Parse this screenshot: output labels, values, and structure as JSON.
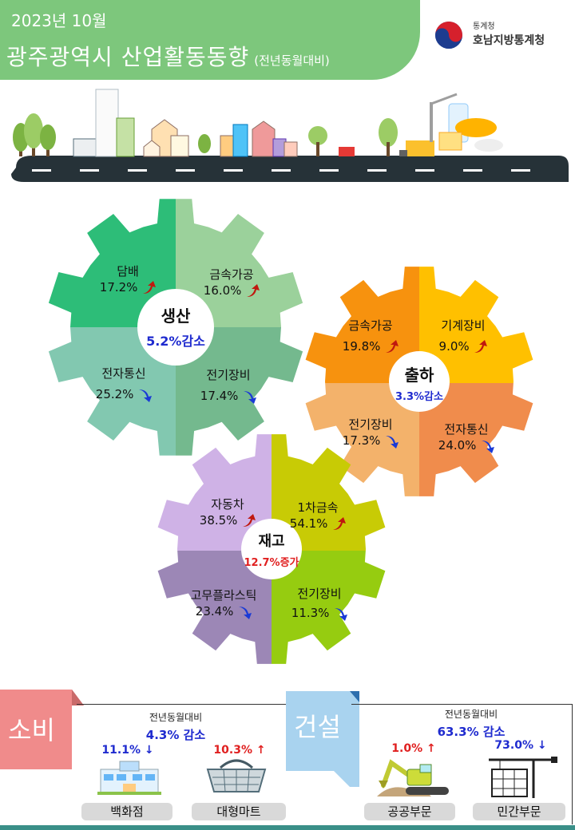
{
  "header": {
    "date": "2023년 10월",
    "title": "광주광역시 산업활동동향",
    "subtitle": "(전년동월대비)",
    "org_small": "통계청",
    "org_name": "호남지방통계청"
  },
  "production": {
    "title": "생산",
    "value": "5.2%감소",
    "items": [
      {
        "name": "담배",
        "pct": "17.2%",
        "dir": "up"
      },
      {
        "name": "금속가공",
        "pct": "16.0%",
        "dir": "up"
      },
      {
        "name": "전자통신",
        "pct": "25.2%",
        "dir": "down"
      },
      {
        "name": "전기장비",
        "pct": "17.4%",
        "dir": "down"
      }
    ]
  },
  "shipment": {
    "title": "출하",
    "value": "3.3%감소",
    "items": [
      {
        "name": "금속가공",
        "pct": "19.8%",
        "dir": "up"
      },
      {
        "name": "기계장비",
        "pct": "9.0%",
        "dir": "up"
      },
      {
        "name": "전기장비",
        "pct": "17.3%",
        "dir": "down"
      },
      {
        "name": "전자통신",
        "pct": "24.0%",
        "dir": "down"
      }
    ]
  },
  "inventory": {
    "title": "재고",
    "value": "12.7%증가",
    "items": [
      {
        "name": "자동차",
        "pct": "38.5%",
        "dir": "up"
      },
      {
        "name": "1차금속",
        "pct": "54.1%",
        "dir": "up"
      },
      {
        "name": "고무플라스틱",
        "pct": "23.4%",
        "dir": "down"
      },
      {
        "name": "전기장비",
        "pct": "11.3%",
        "dir": "down"
      }
    ]
  },
  "consumption": {
    "tab": "소비",
    "compare": "전년동월대비",
    "value": "4.3%  감소",
    "department_pct": "11.1% ↓",
    "mart_pct": "10.3% ↑",
    "department_label": "백화점",
    "mart_label": "대형마트"
  },
  "construction": {
    "tab": "건설",
    "compare": "전년동월대비",
    "value": "63.3%  감소",
    "public_pct": "1.0% ↑",
    "private_pct": "73.0% ↓",
    "public_label": "공공부문",
    "private_label": "민간부문"
  },
  "colors": {
    "header": "#7dc77c",
    "up_arrow": "#c0180f",
    "down_arrow": "#1a3ad6",
    "blue_text": "#1f2bcf",
    "red_text": "#e02020",
    "consumption_tab": "#f08b8b",
    "construction_tab": "#a9d3ef"
  },
  "icons": [
    "taegeuk-logo-icon",
    "department-store-icon",
    "shopping-basket-icon",
    "excavator-icon",
    "tower-crane-icon"
  ]
}
